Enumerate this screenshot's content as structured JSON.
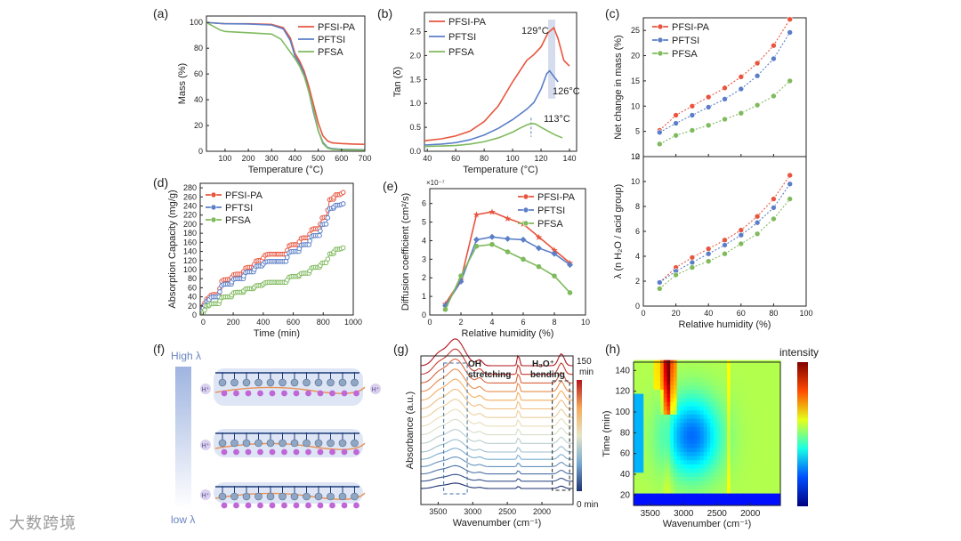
{
  "colors": {
    "pfsi_pa": "#e8553e",
    "pftsi": "#5b7fc7",
    "pfsa": "#7fba5d",
    "axis": "#222222"
  },
  "watermark": "大数跨境",
  "panels": {
    "a": "(a)",
    "b": "(b)",
    "c": "(c)",
    "d": "(d)",
    "e": "(e)",
    "f": "(f)",
    "g": "(g)",
    "h": "(h)"
  },
  "legend_names": [
    "PFSI-PA",
    "PFTSI",
    "PFSA"
  ],
  "chart_data": [
    {
      "id": "a",
      "type": "line",
      "xlabel": "Temperature (°C)",
      "ylabel": "Mass (%)",
      "xlim": [
        20,
        700
      ],
      "ylim": [
        0,
        105
      ],
      "xticks": [
        100,
        200,
        300,
        400,
        500,
        600,
        700
      ],
      "yticks": [
        0,
        20,
        40,
        60,
        80,
        100
      ],
      "series": [
        {
          "name": "PFSI-PA",
          "x": [
            20,
            100,
            200,
            300,
            350,
            380,
            400,
            420,
            440,
            460,
            480,
            500,
            520,
            540,
            560,
            600,
            650,
            700
          ],
          "y": [
            100,
            99,
            99,
            98.5,
            96,
            88,
            76,
            70,
            62,
            50,
            36,
            22,
            12,
            8,
            6.5,
            6,
            5.6,
            5.4
          ]
        },
        {
          "name": "PFTSI",
          "x": [
            20,
            100,
            200,
            300,
            350,
            380,
            400,
            420,
            440,
            460,
            480,
            500,
            520,
            540,
            560,
            600,
            700
          ],
          "y": [
            100,
            99,
            98.8,
            98,
            95,
            86,
            74,
            68,
            60,
            46,
            30,
            16,
            7,
            3,
            2,
            1.5,
            1.2
          ]
        },
        {
          "name": "PFSA",
          "x": [
            20,
            50,
            80,
            100,
            200,
            300,
            340,
            360,
            380,
            400,
            420,
            440,
            460,
            480,
            500,
            520,
            540,
            560,
            600,
            700
          ],
          "y": [
            100,
            97,
            94,
            93,
            92,
            91,
            87,
            82,
            77,
            72,
            66,
            58,
            46,
            32,
            16,
            6,
            2.5,
            1.5,
            1.2,
            1
          ]
        }
      ]
    },
    {
      "id": "b",
      "type": "line",
      "xlabel": "Temperature (°C)",
      "ylabel": "Tan (δ)",
      "xlim": [
        38,
        145
      ],
      "ylim": [
        0,
        2.9
      ],
      "xticks": [
        40,
        60,
        80,
        100,
        120,
        140
      ],
      "yticks": [
        0.0,
        0.5,
        1.0,
        1.5,
        2.0,
        2.5
      ],
      "annotations": [
        "129°C",
        "126°C",
        "113°C"
      ],
      "series": [
        {
          "name": "PFSI-PA",
          "x": [
            38,
            50,
            60,
            70,
            80,
            90,
            100,
            110,
            115,
            120,
            125,
            129,
            132,
            136,
            140
          ],
          "y": [
            0.22,
            0.26,
            0.32,
            0.42,
            0.62,
            0.95,
            1.45,
            1.9,
            2.02,
            2.18,
            2.48,
            2.58,
            2.35,
            1.9,
            1.78
          ]
        },
        {
          "name": "PFTSI",
          "x": [
            38,
            50,
            60,
            70,
            80,
            90,
            100,
            110,
            115,
            120,
            124,
            126,
            128,
            132
          ],
          "y": [
            0.13,
            0.15,
            0.18,
            0.24,
            0.34,
            0.48,
            0.66,
            0.88,
            1.02,
            1.3,
            1.62,
            1.68,
            1.6,
            1.45
          ]
        },
        {
          "name": "PFSA",
          "x": [
            38,
            50,
            60,
            70,
            80,
            90,
            100,
            105,
            110,
            113,
            116,
            120,
            125,
            130,
            135
          ],
          "y": [
            0.1,
            0.11,
            0.12,
            0.15,
            0.2,
            0.28,
            0.4,
            0.48,
            0.55,
            0.58,
            0.57,
            0.5,
            0.42,
            0.34,
            0.28
          ]
        }
      ]
    },
    {
      "id": "c_top",
      "type": "scatter",
      "xlabel": "",
      "ylabel": "Net change in mass (%)",
      "xlim": [
        0,
        100
      ],
      "ylim": [
        0,
        27.5
      ],
      "xticks": [
        0,
        20,
        40,
        60,
        80,
        100
      ],
      "yticks": [
        0,
        5,
        10,
        15,
        20,
        25
      ],
      "series": [
        {
          "name": "PFSI-PA",
          "x": [
            10,
            20,
            30,
            40,
            50,
            60,
            70,
            80,
            90
          ],
          "y": [
            5.2,
            8.2,
            10,
            11.8,
            13.6,
            15.8,
            18.5,
            22,
            27.2
          ]
        },
        {
          "name": "PFTSI",
          "x": [
            10,
            20,
            30,
            40,
            50,
            60,
            70,
            80,
            90
          ],
          "y": [
            4.8,
            6.6,
            8.2,
            9.8,
            11.4,
            13.4,
            16,
            19.4,
            24.6
          ]
        },
        {
          "name": "PFSA",
          "x": [
            10,
            20,
            30,
            40,
            50,
            60,
            70,
            80,
            90
          ],
          "y": [
            2.5,
            4.2,
            5.2,
            6.2,
            7.4,
            8.6,
            10.2,
            12,
            15
          ]
        }
      ]
    },
    {
      "id": "c_bottom",
      "type": "scatter",
      "xlabel": "Relative humidity (%)",
      "ylabel": "λ (n H₂O / acid group)",
      "xlim": [
        0,
        100
      ],
      "ylim": [
        0,
        12
      ],
      "xticks": [
        0,
        20,
        40,
        60,
        80,
        100
      ],
      "yticks": [
        0,
        2,
        4,
        6,
        8,
        10,
        12
      ],
      "series": [
        {
          "name": "PFSI-PA",
          "x": [
            10,
            20,
            30,
            40,
            50,
            60,
            70,
            80,
            90
          ],
          "y": [
            1.9,
            3.1,
            3.9,
            4.6,
            5.3,
            6.1,
            7.2,
            8.6,
            10.5
          ]
        },
        {
          "name": "PFTSI",
          "x": [
            10,
            20,
            30,
            40,
            50,
            60,
            70,
            80,
            90
          ],
          "y": [
            1.9,
            2.8,
            3.5,
            4.2,
            4.9,
            5.7,
            6.7,
            7.9,
            9.8
          ]
        },
        {
          "name": "PFSA",
          "x": [
            10,
            20,
            30,
            40,
            50,
            60,
            70,
            80,
            90
          ],
          "y": [
            1.4,
            2.5,
            3.1,
            3.6,
            4.2,
            5,
            5.8,
            7,
            8.6
          ]
        }
      ]
    },
    {
      "id": "d",
      "type": "scatter",
      "xlabel": "Time (min)",
      "ylabel": "Absorption Capacity (mg/g)",
      "xlim": [
        -20,
        1000
      ],
      "ylim": [
        0,
        290
      ],
      "xticks": [
        0,
        200,
        400,
        600,
        800,
        1000
      ],
      "yticks": [
        0,
        20,
        40,
        60,
        80,
        100,
        120,
        140,
        160,
        180,
        200,
        220,
        240,
        260,
        280
      ],
      "series": [
        {
          "name": "PFSI-PA",
          "steps": [
            [
              0,
              20
            ],
            [
              10,
              35
            ],
            [
              40,
              45
            ],
            [
              110,
              78
            ],
            [
              190,
              90
            ],
            [
              270,
              105
            ],
            [
              340,
              120
            ],
            [
              400,
              134
            ],
            [
              500,
              134
            ],
            [
              560,
              155
            ],
            [
              640,
              170
            ],
            [
              710,
              190
            ],
            [
              780,
              215
            ],
            [
              830,
              255
            ],
            [
              870,
              265
            ],
            [
              920,
              270
            ]
          ]
        },
        {
          "name": "PFTSI",
          "steps": [
            [
              0,
              15
            ],
            [
              10,
              30
            ],
            [
              40,
              40
            ],
            [
              110,
              68
            ],
            [
              190,
              80
            ],
            [
              270,
              95
            ],
            [
              340,
              108
            ],
            [
              400,
              118
            ],
            [
              500,
              118
            ],
            [
              560,
              140
            ],
            [
              640,
              155
            ],
            [
              710,
              175
            ],
            [
              780,
              200
            ],
            [
              830,
              235
            ],
            [
              870,
              242
            ],
            [
              920,
              245
            ]
          ]
        },
        {
          "name": "PFSA",
          "steps": [
            [
              0,
              5
            ],
            [
              10,
              20
            ],
            [
              40,
              25
            ],
            [
              110,
              40
            ],
            [
              190,
              50
            ],
            [
              270,
              58
            ],
            [
              340,
              65
            ],
            [
              400,
              72
            ],
            [
              500,
              72
            ],
            [
              560,
              85
            ],
            [
              640,
              92
            ],
            [
              710,
              105
            ],
            [
              780,
              115
            ],
            [
              830,
              135
            ],
            [
              870,
              145
            ],
            [
              920,
              148
            ]
          ]
        }
      ]
    },
    {
      "id": "e",
      "type": "line",
      "xlabel": "Relative humidity (%)",
      "ylabel": "Diffusion coefficient (cm²/s)",
      "exponent_label": "×10⁻⁷",
      "xlim": [
        0,
        10
      ],
      "ylim": [
        0,
        6.8
      ],
      "xticks": [
        0,
        2,
        4,
        6,
        8,
        10
      ],
      "yticks": [
        0,
        1,
        2,
        3,
        4,
        5,
        6
      ],
      "series": [
        {
          "name": "PFSI-PA",
          "x": [
            1,
            2,
            3,
            4,
            5,
            6,
            7,
            8,
            9
          ],
          "y": [
            0.6,
            1.9,
            5.4,
            5.55,
            5.2,
            4.9,
            4.2,
            3.5,
            2.8
          ]
        },
        {
          "name": "PFTSI",
          "x": [
            1,
            2,
            3,
            4,
            5,
            6,
            7,
            8,
            9
          ],
          "y": [
            0.5,
            1.8,
            4.05,
            4.2,
            4.1,
            4.05,
            3.6,
            3.3,
            2.7
          ]
        },
        {
          "name": "PFSA",
          "x": [
            1,
            2,
            3,
            4,
            5,
            6,
            7,
            8,
            9
          ],
          "y": [
            0.3,
            2.1,
            3.7,
            3.8,
            3.4,
            3.0,
            2.6,
            2.1,
            1.2
          ]
        }
      ]
    },
    {
      "id": "g",
      "type": "line",
      "xlabel": "Wavenumber (cm⁻¹)",
      "ylabel": "Absorbance (a.u.)",
      "xticks": [
        3500,
        3000,
        2500,
        2000
      ],
      "colorbar_max": "150",
      "colorbar_unit": "min",
      "colorbar_min": "0 min",
      "bands": [
        "OH stretching",
        "H₃O⁺ bending"
      ]
    },
    {
      "id": "h",
      "type": "heatmap",
      "xlabel": "Wavenumber (cm⁻¹)",
      "ylabel": "Time (min)",
      "colorbar_label": "intensity",
      "xticks": [
        3500,
        3000,
        2500,
        2000
      ],
      "yticks": [
        20,
        40,
        60,
        80,
        100,
        120,
        140
      ]
    }
  ],
  "f": {
    "high": "High λ",
    "low": "low λ",
    "proton": "H⁺"
  }
}
